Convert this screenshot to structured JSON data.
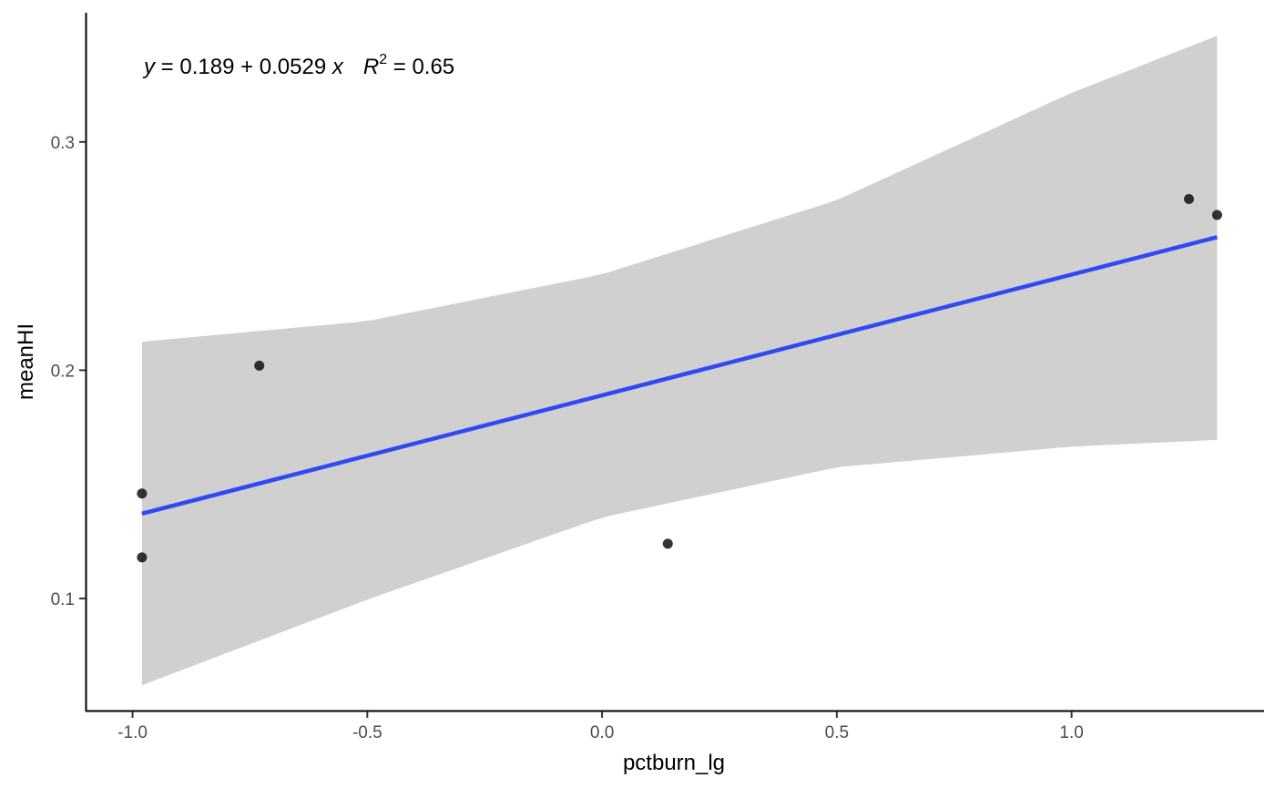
{
  "chart_data": {
    "type": "scatter",
    "title": "",
    "xlabel": "pctburn_lg",
    "ylabel": "meanHI",
    "xlim": [
      -1.1,
      1.41
    ],
    "ylim": [
      0.0509,
      0.3566
    ],
    "x_ticks": [
      -1.0,
      -0.5,
      0.0,
      0.5,
      1.0
    ],
    "x_tick_labels": [
      "-1.0",
      "-0.5",
      "0.0",
      "0.5",
      "1.0"
    ],
    "y_ticks": [
      0.1,
      0.2,
      0.3
    ],
    "y_tick_labels": [
      "0.1",
      "0.2",
      "0.3"
    ],
    "grid": false,
    "points": [
      {
        "x": -0.98,
        "y": 0.146
      },
      {
        "x": -0.98,
        "y": 0.118
      },
      {
        "x": -0.73,
        "y": 0.202
      },
      {
        "x": 0.14,
        "y": 0.124
      },
      {
        "x": 1.25,
        "y": 0.275
      },
      {
        "x": 1.31,
        "y": 0.268
      }
    ],
    "fit": {
      "intercept": 0.189,
      "slope": 0.0529,
      "x_range": [
        -0.98,
        1.31
      ],
      "color": "#3148f5",
      "band_color": "#d0d0d0",
      "band": [
        {
          "x": -0.98,
          "lo": 0.062,
          "hi": 0.2125
        },
        {
          "x": -0.5,
          "lo": 0.0995,
          "hi": 0.2215
        },
        {
          "x": 0.0,
          "lo": 0.1355,
          "hi": 0.242
        },
        {
          "x": 0.5,
          "lo": 0.1575,
          "hi": 0.2745
        },
        {
          "x": 1.0,
          "lo": 0.1665,
          "hi": 0.3215
        },
        {
          "x": 1.31,
          "lo": 0.1695,
          "hi": 0.3465
        }
      ]
    },
    "annotation": {
      "y_var": "y",
      "eq_rhs": " = 0.189 + 0.0529 ",
      "x_var": "x",
      "r_var": "R",
      "r_exp": "2",
      "r_rhs": " = 0.65"
    }
  }
}
